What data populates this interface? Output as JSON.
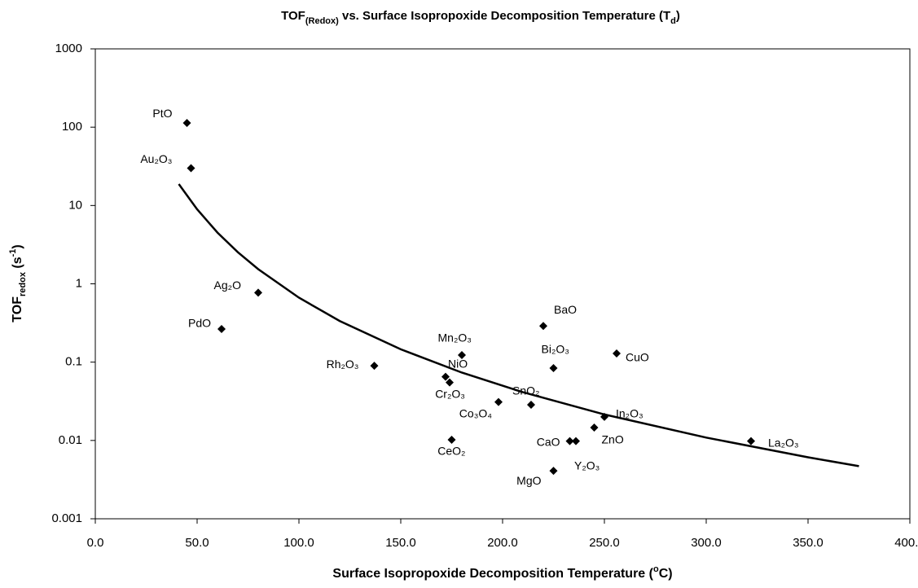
{
  "chart_data": {
    "type": "scatter",
    "title": [
      {
        "text": "TOF"
      },
      {
        "text": "(Redox)",
        "shift": "sub"
      },
      {
        "text": " vs. Surface Isopropoxide Decomposition Temperature (T"
      },
      {
        "text": "d",
        "shift": "sub"
      },
      {
        "text": ")"
      }
    ],
    "x_label": [
      {
        "text": "Surface Isopropoxide Decomposition Temperature ("
      },
      {
        "text": "o",
        "shift": "super"
      },
      {
        "text": "C)"
      }
    ],
    "y_label": [
      {
        "text": "TOF"
      },
      {
        "text": "redox",
        "shift": "sub"
      },
      {
        "text": " (s"
      },
      {
        "text": "-1",
        "shift": "super"
      },
      {
        "text": ")"
      }
    ],
    "point_labels": [
      "PtO",
      "Au₂O₃",
      "Ag₂O",
      "PdO",
      "Rh₂O₃",
      "Mn₂O₃",
      "NiO",
      "Cr₂O₃",
      "Co₃O₄",
      "CeO₂",
      "SnO₂",
      "BaO",
      "Bi₂O₃",
      "CuO",
      "In₂O₃",
      "ZnO",
      "CaO",
      "Y₂O₃",
      "MgO",
      "La₂O₃"
    ],
    "x": [
      45,
      47,
      80,
      62,
      137,
      180,
      172,
      174,
      198,
      175,
      214,
      220,
      225,
      256,
      250,
      245,
      233,
      236,
      225,
      322
    ],
    "values": [
      113,
      30,
      0.77,
      0.265,
      0.09,
      0.123,
      0.065,
      0.055,
      0.031,
      0.0102,
      0.0286,
      0.29,
      0.084,
      0.129,
      0.02,
      0.0146,
      0.0098,
      0.0098,
      0.0041,
      0.0098
    ],
    "color": "#000000",
    "fit": {
      "x": [
        41,
        50,
        60,
        70,
        80,
        100,
        120,
        150,
        180,
        210,
        250,
        300,
        350,
        375
      ],
      "values": [
        18.8,
        8.94,
        4.51,
        2.53,
        1.54,
        0.666,
        0.336,
        0.146,
        0.0735,
        0.0413,
        0.0215,
        0.01087,
        0.00609,
        0.0047
      ],
      "color": "#000000"
    },
    "xlim": [
      0,
      400
    ],
    "xticks": [
      {
        "value": 0,
        "label": "0.0"
      },
      {
        "value": 50,
        "label": "50.0"
      },
      {
        "value": 100,
        "label": "100.0"
      },
      {
        "value": 150,
        "label": "150.0"
      },
      {
        "value": 200,
        "label": "200.0"
      },
      {
        "value": 250,
        "label": "250.0"
      },
      {
        "value": 300,
        "label": "300.0"
      },
      {
        "value": 350,
        "label": "350.0"
      },
      {
        "value": 400,
        "label": "400.0"
      }
    ],
    "ylim": [
      0.001,
      1000
    ],
    "yticks": [
      0.001,
      0.01,
      0.1,
      1,
      10,
      100,
      1000
    ],
    "y_log": true,
    "grid": false
  }
}
